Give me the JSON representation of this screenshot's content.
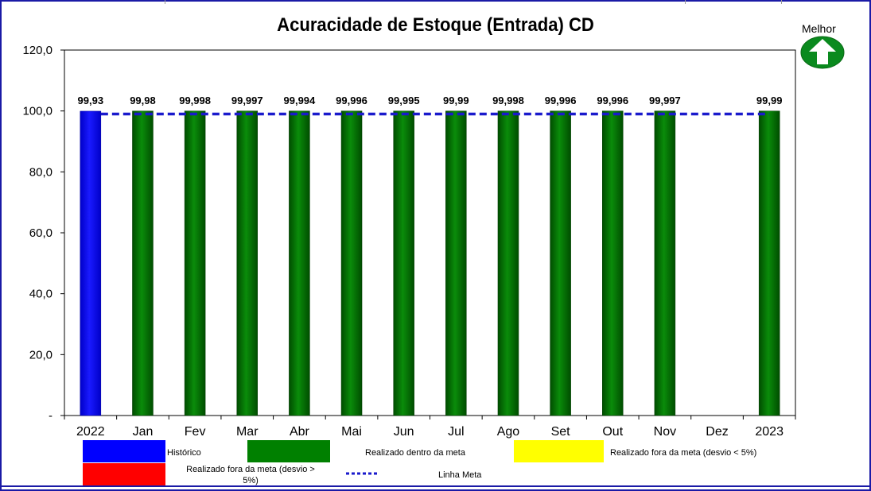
{
  "chart_data": {
    "type": "bar",
    "title": "Acuracidade de Estoque (Entrada) CD",
    "categories": [
      "2022",
      "Jan",
      "Fev",
      "Mar",
      "Abr",
      "Mai",
      "Jun",
      "Jul",
      "Ago",
      "Set",
      "Out",
      "Nov",
      "Dez",
      "2023"
    ],
    "values": [
      99.93,
      99.98,
      99.998,
      99.997,
      99.994,
      99.996,
      99.995,
      99.99,
      99.998,
      99.996,
      99.996,
      99.997,
      null,
      99.99
    ],
    "value_labels": [
      "99,93",
      "99,98",
      "99,998",
      "99,997",
      "99,994",
      "99,996",
      "99,995",
      "99,99",
      "99,998",
      "99,996",
      "99,996",
      "99,997",
      "",
      "99,99"
    ],
    "bar_types": [
      "historico",
      "dentro",
      "dentro",
      "dentro",
      "dentro",
      "dentro",
      "dentro",
      "dentro",
      "dentro",
      "dentro",
      "dentro",
      "dentro",
      "none",
      "dentro"
    ],
    "meta": 99,
    "ylim": [
      0,
      120
    ],
    "yticks": [
      0,
      20,
      40,
      60,
      80,
      100,
      120
    ],
    "ytick_labels": [
      "-",
      "20,0",
      "40,0",
      "60,0",
      "80,0",
      "100,0",
      "120,0"
    ],
    "grid": false,
    "legend_placement": "bottom"
  },
  "indicator": {
    "label": "Melhor",
    "icon": "arrow-up-icon"
  },
  "legend": {
    "historico": "Histórico",
    "dentro": "Realizado dentro da meta",
    "fora_menor": "Realizado fora da meta (desvio < 5%)",
    "fora_maior_line1": "Realizado fora da meta (desvio >",
    "fora_maior_line2": "5%)",
    "linha_meta": "Linha Meta"
  },
  "colors": {
    "historico": "#0000ff",
    "dentro": "#008000",
    "fora_menor": "#ffff00",
    "fora_maior": "#ff0000",
    "meta_line": "#1a1acc",
    "indicator": "#0a8a1e"
  }
}
